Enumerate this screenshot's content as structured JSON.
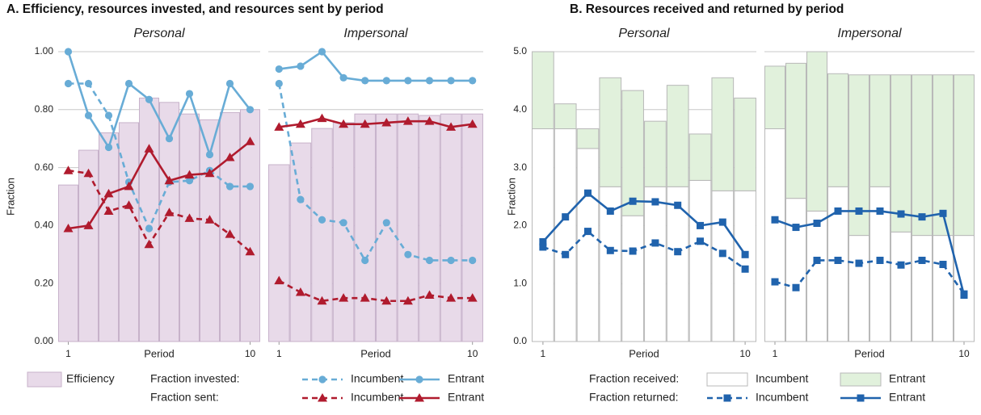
{
  "chart_data": [
    {
      "type": "bar-line",
      "title": "A. Efficiency, resources invested, and resources sent by period",
      "ylabel": "Fraction",
      "xlabel": "Period",
      "x": [
        1,
        2,
        3,
        4,
        5,
        6,
        7,
        8,
        9,
        10
      ],
      "xlim": [
        0.5,
        10.5
      ],
      "xticks": [
        1,
        10
      ],
      "ylim": [
        0,
        1
      ],
      "yticks": [
        {
          "value": 0,
          "label": "0.00"
        },
        {
          "value": 0.2,
          "label": "0.20"
        },
        {
          "value": 0.4,
          "label": "0.40"
        },
        {
          "value": 0.6,
          "label": "0.60"
        },
        {
          "value": 0.8,
          "label": "0.80"
        },
        {
          "value": 1,
          "label": "1.00"
        }
      ],
      "grid": true,
      "bar_group": {
        "series": [
          {
            "name": "Efficiency",
            "color": "#e8dae9",
            "edge": "#c7b2ca"
          }
        ]
      },
      "line_groups": [
        {
          "label": "Fraction invested:",
          "color": "#68acd6",
          "marker": "circle",
          "series": [
            {
              "name": "Incumbent",
              "dash": true
            },
            {
              "name": "Entrant",
              "dash": false
            }
          ]
        },
        {
          "label": "Fraction sent:",
          "color": "#b01b2e",
          "marker": "triangle",
          "series": [
            {
              "name": "Incumbent",
              "dash": true
            },
            {
              "name": "Entrant",
              "dash": false
            }
          ]
        }
      ],
      "panels": [
        {
          "subtitle": "Personal",
          "bar_values": [
            [
              0.54,
              0.66,
              0.72,
              0.755,
              0.84,
              0.825,
              0.785,
              0.765,
              0.79,
              0.8
            ]
          ],
          "line_values": [
            [
              [
                0.89,
                0.89,
                0.78,
                0.55,
                0.39,
                0.55,
                0.555,
                0.59,
                0.535,
                0.535
              ],
              [
                1.0,
                0.78,
                0.67,
                0.89,
                0.835,
                0.7,
                0.855,
                0.645,
                0.89,
                0.8
              ]
            ],
            [
              [
                0.59,
                0.58,
                0.45,
                0.47,
                0.335,
                0.445,
                0.425,
                0.42,
                0.37,
                0.31
              ],
              [
                0.39,
                0.4,
                0.51,
                0.535,
                0.665,
                0.555,
                0.575,
                0.58,
                0.635,
                0.69
              ]
            ]
          ]
        },
        {
          "subtitle": "Impersonal",
          "bar_values": [
            [
              0.61,
              0.685,
              0.735,
              0.755,
              0.785,
              0.785,
              0.785,
              0.78,
              0.785,
              0.785
            ]
          ],
          "line_values": [
            [
              [
                0.89,
                0.49,
                0.42,
                0.41,
                0.28,
                0.41,
                0.3,
                0.28,
                0.28,
                0.28
              ],
              [
                0.94,
                0.95,
                1.0,
                0.91,
                0.9,
                0.9,
                0.9,
                0.9,
                0.9,
                0.9
              ]
            ],
            [
              [
                0.21,
                0.17,
                0.14,
                0.15,
                0.15,
                0.14,
                0.14,
                0.16,
                0.15,
                0.15
              ],
              [
                0.74,
                0.75,
                0.77,
                0.75,
                0.75,
                0.755,
                0.76,
                0.76,
                0.74,
                0.75
              ]
            ]
          ]
        }
      ]
    },
    {
      "type": "bar-line",
      "title": "B. Resources received and returned by period",
      "ylabel": "Fraction",
      "xlabel": "Period",
      "x": [
        1,
        2,
        3,
        4,
        5,
        6,
        7,
        8,
        9,
        10
      ],
      "xlim": [
        0.5,
        10.5
      ],
      "xticks": [
        1,
        10
      ],
      "ylim": [
        0,
        5
      ],
      "yticks": [
        {
          "value": 0,
          "label": "0.0"
        },
        {
          "value": 1,
          "label": "1.0"
        },
        {
          "value": 2,
          "label": "2.0"
        },
        {
          "value": 3,
          "label": "3.0"
        },
        {
          "value": 4,
          "label": "4.0"
        },
        {
          "value": 5,
          "label": "5.0"
        }
      ],
      "grid": true,
      "bar_group": {
        "label": "Fraction received:",
        "series": [
          {
            "name": "Incumbent",
            "color": "#ffffff",
            "edge": "#b8b8b8"
          },
          {
            "name": "Entrant",
            "color": "#e1f1dc",
            "edge": "#b8b8b8"
          }
        ]
      },
      "line_groups": [
        {
          "label": "Fraction returned:",
          "color": "#2063ad",
          "marker": "square",
          "series": [
            {
              "name": "Incumbent",
              "dash": true
            },
            {
              "name": "Entrant",
              "dash": false
            }
          ]
        }
      ],
      "panels": [
        {
          "subtitle": "Personal",
          "bar_values": [
            [
              3.67,
              3.67,
              3.33,
              2.67,
              2.17,
              2.67,
              2.67,
              2.78,
              2.6,
              2.6
            ],
            [
              1.33,
              0.43,
              0.34,
              1.88,
              2.16,
              1.13,
              1.75,
              0.8,
              1.95,
              1.6
            ]
          ],
          "line_values": [
            [
              [
                1.63,
                1.5,
                1.9,
                1.57,
                1.56,
                1.7,
                1.55,
                1.73,
                1.52,
                1.25
              ],
              [
                1.72,
                2.15,
                2.56,
                2.25,
                2.42,
                2.41,
                2.35,
                2.0,
                2.06,
                1.5
              ]
            ]
          ]
        },
        {
          "subtitle": "Impersonal",
          "bar_values": [
            [
              3.67,
              2.47,
              2.25,
              2.67,
              1.83,
              2.67,
              1.89,
              1.83,
              1.83,
              1.83
            ],
            [
              1.08,
              2.33,
              2.75,
              1.95,
              2.77,
              1.93,
              2.71,
              2.77,
              2.77,
              2.77
            ]
          ],
          "line_values": [
            [
              [
                1.03,
                0.93,
                1.4,
                1.4,
                1.35,
                1.4,
                1.32,
                1.4,
                1.33,
                0.82
              ],
              [
                2.1,
                1.97,
                2.04,
                2.25,
                2.25,
                2.25,
                2.2,
                2.15,
                2.21,
                0.8
              ]
            ]
          ]
        }
      ]
    }
  ]
}
